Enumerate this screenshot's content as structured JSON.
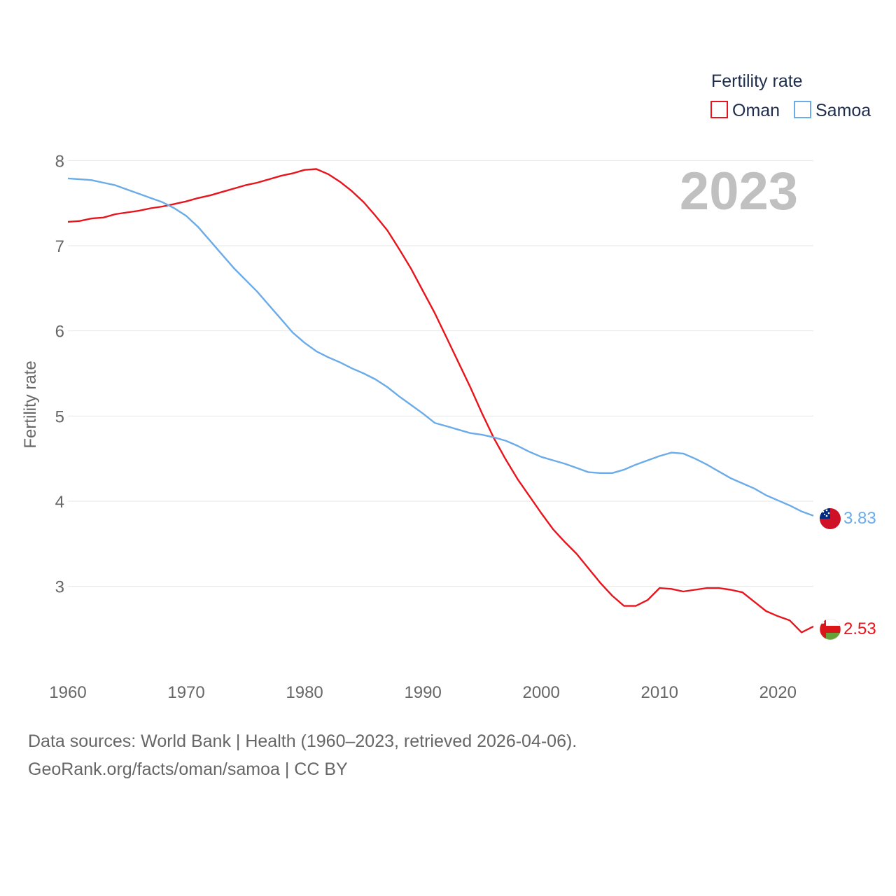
{
  "chart_data": {
    "type": "line",
    "ylabel": "Fertility rate",
    "legend_title": "Fertility rate",
    "current_year": "2023",
    "xlim": [
      1960,
      2023
    ],
    "ylim": [
      2.2,
      8.2
    ],
    "x_ticks": [
      1960,
      1970,
      1980,
      1990,
      2000,
      2010,
      2020
    ],
    "y_ticks": [
      3,
      4,
      5,
      6,
      7,
      8
    ],
    "x": [
      1960,
      1961,
      1962,
      1963,
      1964,
      1965,
      1966,
      1967,
      1968,
      1969,
      1970,
      1971,
      1972,
      1973,
      1974,
      1975,
      1976,
      1977,
      1978,
      1979,
      1980,
      1981,
      1982,
      1983,
      1984,
      1985,
      1986,
      1987,
      1988,
      1989,
      1990,
      1991,
      1992,
      1993,
      1994,
      1995,
      1996,
      1997,
      1998,
      1999,
      2000,
      2001,
      2002,
      2003,
      2004,
      2005,
      2006,
      2007,
      2008,
      2009,
      2010,
      2011,
      2012,
      2013,
      2014,
      2015,
      2016,
      2017,
      2018,
      2019,
      2020,
      2021,
      2022,
      2023
    ],
    "series": [
      {
        "name": "Oman",
        "color": "#e8141c",
        "end_label": "2.53",
        "values": [
          7.28,
          7.29,
          7.32,
          7.33,
          7.37,
          7.39,
          7.41,
          7.44,
          7.46,
          7.49,
          7.52,
          7.56,
          7.59,
          7.63,
          7.67,
          7.71,
          7.74,
          7.78,
          7.82,
          7.85,
          7.89,
          7.9,
          7.84,
          7.75,
          7.64,
          7.51,
          7.35,
          7.18,
          6.96,
          6.73,
          6.47,
          6.21,
          5.92,
          5.63,
          5.34,
          5.03,
          4.74,
          4.49,
          4.26,
          4.06,
          3.86,
          3.67,
          3.52,
          3.38,
          3.21,
          3.04,
          2.89,
          2.77,
          2.77,
          2.84,
          2.98,
          2.97,
          2.94,
          2.96,
          2.98,
          2.98,
          2.96,
          2.93,
          2.82,
          2.71,
          2.65,
          2.6,
          2.46,
          2.53
        ]
      },
      {
        "name": "Samoa",
        "color": "#6aabe8",
        "end_label": "3.83",
        "values": [
          7.79,
          7.78,
          7.77,
          7.74,
          7.71,
          7.66,
          7.61,
          7.56,
          7.51,
          7.44,
          7.35,
          7.22,
          7.06,
          6.9,
          6.74,
          6.6,
          6.46,
          6.3,
          6.14,
          5.98,
          5.86,
          5.76,
          5.69,
          5.63,
          5.56,
          5.5,
          5.43,
          5.34,
          5.23,
          5.13,
          5.03,
          4.92,
          4.88,
          4.84,
          4.8,
          4.78,
          4.75,
          4.71,
          4.65,
          4.58,
          4.52,
          4.48,
          4.44,
          4.39,
          4.34,
          4.33,
          4.33,
          4.37,
          4.43,
          4.48,
          4.53,
          4.57,
          4.56,
          4.5,
          4.43,
          4.35,
          4.27,
          4.21,
          4.15,
          4.07,
          4.01,
          3.95,
          3.88,
          3.83
        ]
      }
    ]
  },
  "footer": {
    "line1": "Data sources: World Bank | Health (1960–2023, retrieved 2026-04-06).",
    "line2": "GeoRank.org/facts/oman/samoa | CC BY"
  }
}
